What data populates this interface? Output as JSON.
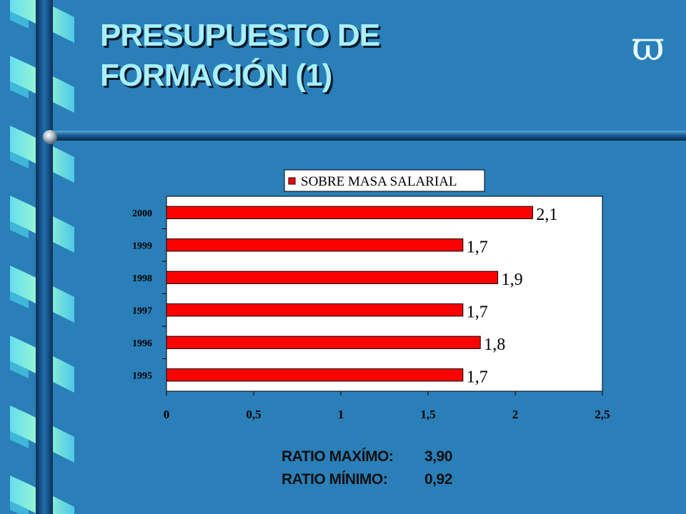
{
  "slide": {
    "title_line1": "PRESUPUESTO DE",
    "title_line2": "FORMACIÓN (1)",
    "symbol": "ϖ",
    "symbol_icon": "omega-pi-icon"
  },
  "colors": {
    "background": "#2a7fb8",
    "title": "#a8f0ff",
    "bar": "#ff0000",
    "plot_bg": "#ffffff"
  },
  "chart_data": {
    "type": "bar",
    "orientation": "horizontal",
    "categories": [
      "2000",
      "1999",
      "1998",
      "1997",
      "1996",
      "1995"
    ],
    "series": [
      {
        "name": "SOBRE MASA SALARIAL",
        "values": [
          2.1,
          1.7,
          1.9,
          1.7,
          1.8,
          1.7
        ]
      }
    ],
    "data_labels": [
      "2,1",
      "1,7",
      "1,9",
      "1,7",
      "1,8",
      "1,7"
    ],
    "x_ticks": [
      0,
      0.5,
      1,
      1.5,
      2,
      2.5
    ],
    "x_tick_labels": [
      "0",
      "0,5",
      "1",
      "1,5",
      "2",
      "2,5"
    ],
    "xlim": [
      0,
      2.5
    ],
    "legend_position": "top",
    "grid": false
  },
  "ratios": [
    {
      "label": "RATIO MAXÍMO:",
      "value": "3,90"
    },
    {
      "label": "RATIO MÍNIMO:",
      "value": "0,92"
    }
  ]
}
